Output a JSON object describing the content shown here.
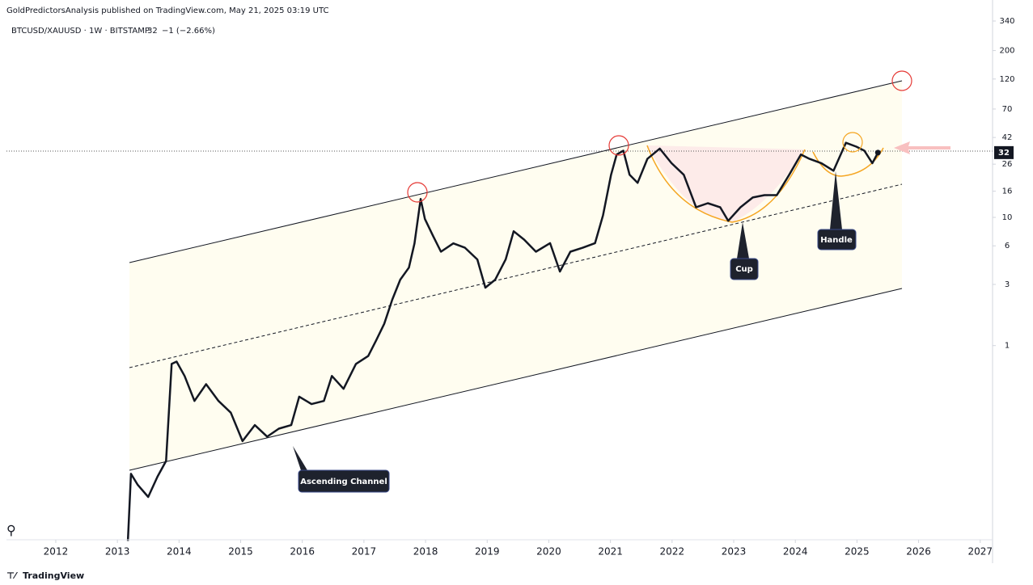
{
  "chart_data": {
    "type": "line",
    "title": "GoldPredictorsAnalysis published on TradingView.com, May 21, 2025 03:19 UTC",
    "symbol_info": "BTCUSD/XAUUSD · 1W · BITSTAMP",
    "last_price": 32,
    "change": "−1 (−2.66%)",
    "footer": "TradingView",
    "color": "#131722",
    "log_scale": true,
    "grid": false,
    "x": [
      2013.17,
      2013.22,
      2013.33,
      2013.5,
      2013.65,
      2013.79,
      2013.88,
      2013.96,
      2014.09,
      2014.25,
      2014.44,
      2014.64,
      2014.84,
      2015.03,
      2015.23,
      2015.43,
      2015.62,
      2015.82,
      2015.95,
      2016.15,
      2016.35,
      2016.48,
      2016.67,
      2016.87,
      2017.07,
      2017.2,
      2017.33,
      2017.46,
      2017.59,
      2017.73,
      2017.82,
      2017.92,
      2017.99,
      2018.12,
      2018.25,
      2018.45,
      2018.64,
      2018.84,
      2018.97,
      2019.13,
      2019.3,
      2019.43,
      2019.6,
      2019.79,
      2020.02,
      2020.18,
      2020.35,
      2020.55,
      2020.75,
      2020.88,
      2021.01,
      2021.1,
      2021.21,
      2021.31,
      2021.44,
      2021.6,
      2021.8,
      2021.99,
      2022.19,
      2022.39,
      2022.58,
      2022.78,
      2022.91,
      2023.11,
      2023.31,
      2023.5,
      2023.7,
      2023.9,
      2024.09,
      2024.23,
      2024.42,
      2024.62,
      2024.82,
      2024.99,
      2025.12,
      2025.25,
      2025.34
    ],
    "values": [
      0.03,
      0.1,
      0.082,
      0.066,
      0.095,
      0.126,
      0.72,
      0.75,
      0.58,
      0.37,
      0.5,
      0.37,
      0.3,
      0.18,
      0.24,
      0.195,
      0.225,
      0.24,
      0.4,
      0.35,
      0.37,
      0.58,
      0.46,
      0.72,
      0.83,
      1.1,
      1.48,
      2.28,
      3.27,
      4.06,
      6.27,
      13.9,
      9.7,
      7.2,
      5.4,
      6.27,
      5.8,
      4.7,
      2.83,
      3.27,
      4.7,
      7.8,
      6.7,
      5.4,
      6.3,
      3.78,
      5.4,
      5.8,
      6.3,
      10.4,
      21.5,
      30.9,
      33.1,
      21.5,
      18.6,
      28.6,
      34.4,
      26.5,
      21.5,
      12.0,
      12.9,
      12.0,
      9.4,
      12.0,
      14.3,
      14.9,
      14.9,
      21.5,
      30.9,
      28.6,
      26.5,
      23.1,
      38.2,
      35.6,
      33.1,
      26.5,
      32
    ],
    "xlim": [
      2011.2,
      2027.2
    ],
    "xticks": [
      2012,
      2013,
      2014,
      2015,
      2016,
      2017,
      2018,
      2019,
      2020,
      2021,
      2022,
      2023,
      2024,
      2025,
      2026,
      2027
    ],
    "ylim": [
      0.0306,
      371
    ],
    "yticks": [
      1,
      3,
      6,
      10,
      16,
      26,
      42,
      70,
      120,
      200,
      340
    ],
    "annotations": [
      "Ascending Channel",
      "Cup",
      "Handle"
    ]
  }
}
